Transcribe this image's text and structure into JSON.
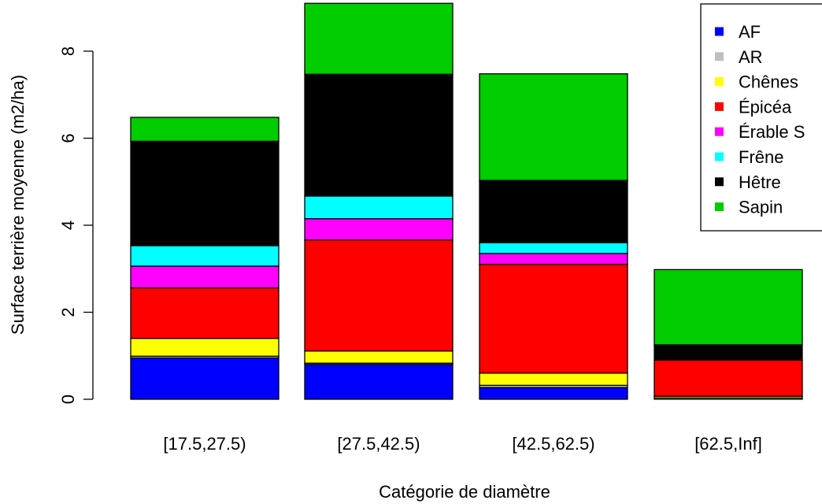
{
  "chart_data": {
    "type": "bar",
    "stacked": true,
    "title": "",
    "xlabel": "Catégorie de diamètre",
    "ylabel": "Surface terrière moyenne (m2/ha)",
    "ylim": [
      0,
      9.2
    ],
    "yticks": [
      0,
      2,
      4,
      6,
      8
    ],
    "grid": false,
    "legend_position": "top-right",
    "categories": [
      "[17.5,27.5)",
      "[27.5,42.5)",
      "[42.5,62.5)",
      "[62.5,Inf]"
    ],
    "series": [
      {
        "name": "AF",
        "color": "#0000ff",
        "values": [
          0.95,
          0.8,
          0.27,
          0.0
        ]
      },
      {
        "name": "AR",
        "color": "#bebebe",
        "values": [
          0.04,
          0.03,
          0.05,
          0.03
        ]
      },
      {
        "name": "Chênes",
        "color": "#ffff00",
        "values": [
          0.41,
          0.28,
          0.28,
          0.04
        ]
      },
      {
        "name": "Épicéa",
        "color": "#ff0000",
        "values": [
          1.16,
          2.55,
          2.5,
          0.83
        ]
      },
      {
        "name": "Érable S",
        "color": "#ff00ff",
        "values": [
          0.5,
          0.49,
          0.25,
          0.0
        ]
      },
      {
        "name": "Frêne",
        "color": "#00ffff",
        "values": [
          0.47,
          0.52,
          0.25,
          0.0
        ]
      },
      {
        "name": "Hêtre",
        "color": "#000000",
        "values": [
          2.4,
          2.8,
          1.43,
          0.35
        ]
      },
      {
        "name": "Sapin",
        "color": "#00cc00",
        "values": [
          0.55,
          1.63,
          2.45,
          1.73
        ]
      }
    ]
  }
}
